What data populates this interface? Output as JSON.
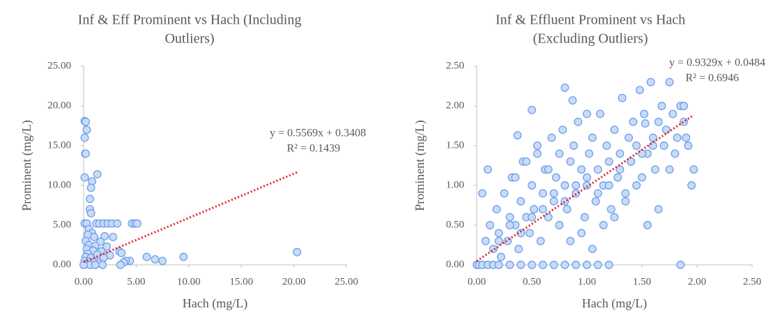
{
  "chart_data": [
    {
      "type": "scatter",
      "title": [
        "Inf & Eff Prominent vs Hach (Including",
        "Outliers)"
      ],
      "x_label": "Hach (mg/L)",
      "y_label": "Prominent (mg/L)",
      "color": "#6d9eeb",
      "x": [
        0.1,
        0.2,
        0.3,
        0.1,
        0.15,
        0.2,
        0.1,
        1.3,
        0.8,
        0.7,
        0.6,
        0.6,
        0.7,
        0.1,
        0.3,
        1.2,
        1.5,
        1.9,
        2.3,
        2.7,
        3.2,
        4.6,
        4.9,
        5.1,
        0.5,
        0.8,
        0.4,
        1.0,
        2.0,
        2.8,
        0.2,
        1.6,
        0.5,
        1.1,
        2.2,
        0.3,
        0.9,
        1.7,
        3.4,
        3.6,
        0.4,
        1.3,
        2.5,
        0.2,
        0.7,
        1.9,
        6.0,
        9.5,
        20.3,
        6.8,
        7.5,
        4.4,
        4.0,
        3.8,
        0.1,
        0.5,
        1.0,
        1.5,
        0.2,
        0.6,
        1.1,
        1.8,
        3.5,
        0.0
      ],
      "y": [
        18.1,
        18.0,
        17.0,
        16.0,
        14.0,
        14.0,
        11.0,
        11.4,
        10.5,
        9.7,
        8.3,
        7.0,
        6.5,
        5.2,
        5.2,
        5.2,
        5.2,
        5.2,
        5.2,
        5.2,
        5.2,
        5.2,
        5.2,
        5.2,
        4.5,
        4.0,
        3.8,
        3.5,
        3.6,
        3.5,
        3.0,
        2.9,
        2.5,
        2.4,
        2.3,
        2.0,
        1.8,
        1.7,
        1.7,
        1.5,
        1.4,
        1.3,
        1.2,
        1.0,
        0.9,
        0.9,
        1.0,
        1.0,
        1.6,
        0.7,
        0.5,
        0.5,
        0.5,
        0.3,
        0.5,
        0.4,
        0.3,
        0.2,
        0.1,
        0.0,
        0.0,
        0.0,
        0.0,
        0.0
      ],
      "trendline": {
        "slope": 0.5569,
        "intercept": 0.3408,
        "x": [
          0,
          20.3
        ],
        "color": "#e0202a"
      },
      "annotations": [
        "y = 0.5569x + 0.3408",
        "R² = 0.1439"
      ],
      "xlim": [
        0,
        25
      ],
      "ylim": [
        0,
        25
      ],
      "xticks": [
        {
          "value": 0,
          "label": "0.00"
        },
        {
          "value": 5,
          "label": "5.00"
        },
        {
          "value": 10,
          "label": "10.00"
        },
        {
          "value": 15,
          "label": "15.00"
        },
        {
          "value": 20,
          "label": "20.00"
        },
        {
          "value": 25,
          "label": "25.00"
        }
      ],
      "yticks": [
        {
          "value": 0,
          "label": "0.00"
        },
        {
          "value": 5,
          "label": "5.00"
        },
        {
          "value": 10,
          "label": "10.00"
        },
        {
          "value": 15,
          "label": "15.00"
        },
        {
          "value": 20,
          "label": "20.00"
        },
        {
          "value": 25,
          "label": "25.00"
        }
      ]
    },
    {
      "type": "scatter",
      "title": [
        "Inf & Effluent Prominent vs Hach",
        "(Excluding Outliers)"
      ],
      "x_label": "Hach (mg/L)",
      "y_label": "Prominent (mg/L)",
      "color": "#6d9eeb",
      "x": [
        0.0,
        0.02,
        0.05,
        0.08,
        0.1,
        0.12,
        0.15,
        0.18,
        0.2,
        0.22,
        0.25,
        0.28,
        0.3,
        0.32,
        0.35,
        0.38,
        0.4,
        0.42,
        0.45,
        0.48,
        0.5,
        0.52,
        0.55,
        0.58,
        0.6,
        0.62,
        0.65,
        0.68,
        0.7,
        0.72,
        0.75,
        0.78,
        0.8,
        0.82,
        0.85,
        0.88,
        0.9,
        0.92,
        0.95,
        0.98,
        1.0,
        1.02,
        1.05,
        1.08,
        1.1,
        1.12,
        1.15,
        1.18,
        1.2,
        1.22,
        1.25,
        1.28,
        1.3,
        1.32,
        1.35,
        1.38,
        1.4,
        1.42,
        1.45,
        1.48,
        1.5,
        1.52,
        1.55,
        1.58,
        1.6,
        1.62,
        1.65,
        1.68,
        1.7,
        1.72,
        1.75,
        1.78,
        1.8,
        1.82,
        1.85,
        1.88,
        1.9,
        1.92,
        1.95,
        1.97,
        0.05,
        0.1,
        0.15,
        0.2,
        0.3,
        0.4,
        0.5,
        0.6,
        0.7,
        0.8,
        0.9,
        1.0,
        1.1,
        1.2,
        0.35,
        0.45,
        0.55,
        0.65,
        0.75,
        0.85,
        0.95,
        1.05,
        1.15,
        1.25,
        1.35,
        1.45,
        1.55,
        1.65,
        1.75,
        1.85,
        0.2,
        0.3,
        0.4,
        0.5,
        0.6,
        0.7,
        0.8,
        0.9,
        1.0,
        1.1,
        1.2,
        1.3,
        1.4,
        1.5,
        1.6,
        0.5,
        0.8,
        1.0,
        0.37,
        0.87,
        1.53,
        1.88
      ],
      "y": [
        0.0,
        0.0,
        0.9,
        0.3,
        1.2,
        0.5,
        0.2,
        0.7,
        0.4,
        0.1,
        0.9,
        0.3,
        0.6,
        1.1,
        0.5,
        0.2,
        0.8,
        1.3,
        0.6,
        0.4,
        1.0,
        0.7,
        1.4,
        0.3,
        0.9,
        1.2,
        0.6,
        1.6,
        0.8,
        1.1,
        0.5,
        1.7,
        1.0,
        0.7,
        1.3,
        1.5,
        0.9,
        1.8,
        1.2,
        0.6,
        1.0,
        1.4,
        1.6,
        0.8,
        1.2,
        1.9,
        1.0,
        1.5,
        1.3,
        0.7,
        1.7,
        1.1,
        1.4,
        2.1,
        0.9,
        1.6,
        1.3,
        1.8,
        1.5,
        2.2,
        1.1,
        1.9,
        1.4,
        2.3,
        1.6,
        1.2,
        1.8,
        2.0,
        1.5,
        1.7,
        2.3,
        1.9,
        1.4,
        1.6,
        2.0,
        1.8,
        1.6,
        1.5,
        1.0,
        1.2,
        0.0,
        0.0,
        0.0,
        0.0,
        0.0,
        0.0,
        0.0,
        0.0,
        0.0,
        0.0,
        0.0,
        0.0,
        0.0,
        0.0,
        1.1,
        1.3,
        1.5,
        1.2,
        1.4,
        0.3,
        0.4,
        0.2,
        0.5,
        0.6,
        0.8,
        1.0,
        0.5,
        0.7,
        1.2,
        0.0,
        0.3,
        0.5,
        0.4,
        0.6,
        0.7,
        0.9,
        0.8,
        1.0,
        1.1,
        0.9,
        1.0,
        1.2,
        1.3,
        1.4,
        1.5,
        1.95,
        2.23,
        1.9,
        1.63,
        2.07,
        1.78,
        2.0
      ],
      "trendline": {
        "slope": 0.9329,
        "intercept": 0.0484,
        "x": [
          0,
          1.97
        ],
        "color": "#e0202a"
      },
      "annotations": [
        "y = 0.9329x + 0.0484",
        "R² = 0.6946"
      ],
      "xlim": [
        0,
        2.5
      ],
      "ylim": [
        0,
        2.5
      ],
      "xticks": [
        {
          "value": 0,
          "label": "0.00"
        },
        {
          "value": 0.5,
          "label": "0.50"
        },
        {
          "value": 1,
          "label": "1.00"
        },
        {
          "value": 1.5,
          "label": "1.50"
        },
        {
          "value": 2,
          "label": "2.00"
        },
        {
          "value": 2.5,
          "label": "2.50"
        }
      ],
      "yticks": [
        {
          "value": 0,
          "label": "0.00"
        },
        {
          "value": 0.5,
          "label": "0.50"
        },
        {
          "value": 1,
          "label": "1.00"
        },
        {
          "value": 1.5,
          "label": "1.50"
        },
        {
          "value": 2,
          "label": "2.00"
        },
        {
          "value": 2.5,
          "label": "2.50"
        }
      ]
    }
  ]
}
